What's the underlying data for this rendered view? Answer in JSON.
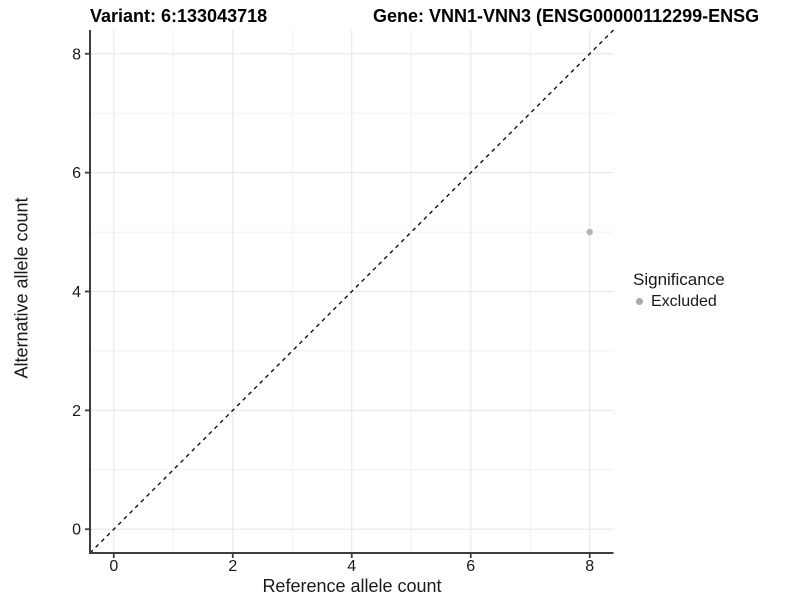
{
  "figure": {
    "variant_title": "Variant: 6:133043718",
    "gene_title": "Gene: VNN1-VNN3 (ENSG00000112299-ENSG"
  },
  "chart_data": {
    "type": "scatter",
    "xlabel": "Reference allele count",
    "ylabel": "Alternative allele count",
    "xlim": [
      -0.4,
      8.4
    ],
    "ylim": [
      -0.4,
      8.4
    ],
    "x_major_ticks": [
      0,
      2,
      4,
      6,
      8
    ],
    "y_major_ticks": [
      0,
      2,
      4,
      6,
      8
    ],
    "x_minor_ticks": [
      1,
      3,
      5,
      7
    ],
    "y_minor_ticks": [
      1,
      3,
      5,
      7
    ],
    "grid": "major+minor",
    "reference_line": {
      "type": "identity",
      "from": [
        -0.4,
        -0.4
      ],
      "to": [
        8.4,
        8.4
      ],
      "style": "dashed",
      "color": "#000000"
    },
    "series": [
      {
        "name": "Excluded",
        "color": "#b4b4b4",
        "marker": "circle",
        "points": [
          [
            8,
            5
          ]
        ]
      }
    ],
    "legend": {
      "title": "Significance",
      "position": "right",
      "items": [
        {
          "label": "Excluded",
          "color": "#aaaaaa",
          "marker": "circle"
        }
      ]
    },
    "colors": {
      "axis_line": "#3d3d3d",
      "grid_major": "#e6e6e6",
      "grid_minor": "#f1f1f1",
      "text": "#1a1a1a",
      "background": "#ffffff"
    }
  }
}
